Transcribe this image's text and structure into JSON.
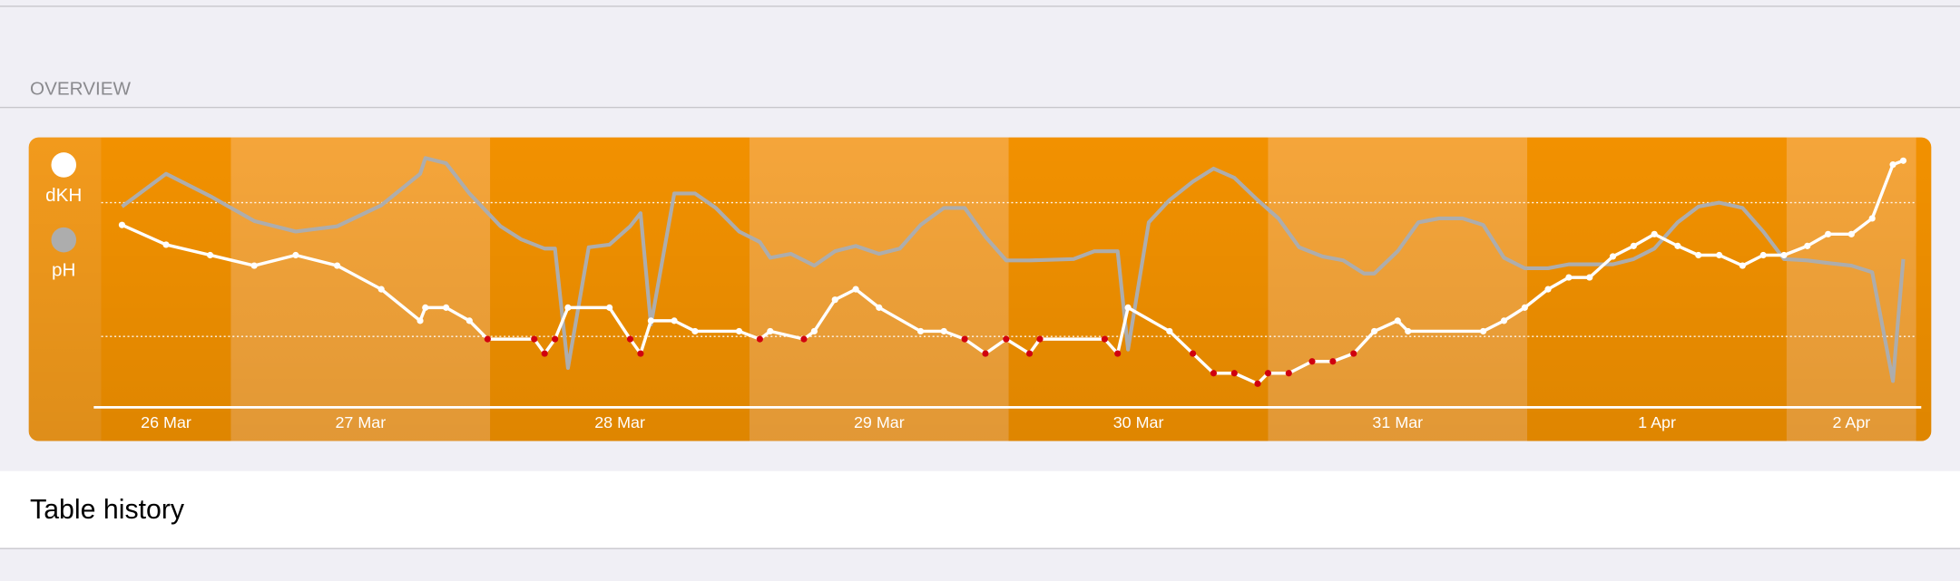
{
  "header": {
    "section_title": "OVERVIEW"
  },
  "chart_data": {
    "type": "line",
    "xlim": [
      0.5,
      7.5
    ],
    "xticks": [
      {
        "value": 0.75,
        "label": "26 Mar"
      },
      {
        "value": 1.5,
        "label": "27 Mar"
      },
      {
        "value": 2.5,
        "label": "28 Mar"
      },
      {
        "value": 3.5,
        "label": "29 Mar"
      },
      {
        "value": 4.5,
        "label": "30 Mar"
      },
      {
        "value": 5.5,
        "label": "31 Mar"
      },
      {
        "value": 6.5,
        "label": "1 Apr"
      },
      {
        "value": 7.25,
        "label": "2 Apr"
      }
    ],
    "ylim": [
      0,
      100
    ],
    "reference_lines": [
      78,
      27
    ],
    "point_color": "#ffffff",
    "low_point_color": "#d0000f",
    "series": [
      {
        "name": "dKH",
        "color": "#ffffff",
        "x": [
          0.58,
          0.75,
          0.92,
          1.09,
          1.25,
          1.41,
          1.58,
          1.73,
          1.75,
          1.83,
          1.92,
          1.99,
          2.17,
          2.21,
          2.25,
          2.3,
          2.46,
          2.54,
          2.58,
          2.62,
          2.71,
          2.79,
          2.96,
          3.04,
          3.08,
          3.21,
          3.25,
          3.33,
          3.41,
          3.5,
          3.66,
          3.75,
          3.83,
          3.91,
          3.99,
          4.08,
          4.12,
          4.37,
          4.42,
          4.46,
          4.62,
          4.71,
          4.79,
          4.87,
          4.96,
          5.0,
          5.08,
          5.17,
          5.25,
          5.33,
          5.41,
          5.5,
          5.54,
          5.83,
          5.91,
          5.99,
          6.08,
          6.16,
          6.24,
          6.33,
          6.41,
          6.49,
          6.58,
          6.66,
          6.74,
          6.83,
          6.91,
          6.99,
          7.08,
          7.16,
          7.25,
          7.33,
          7.41,
          7.45
        ],
        "values": [
          69.5,
          62,
          58,
          54,
          58,
          54,
          45,
          33,
          38,
          38,
          33,
          26,
          26,
          20.5,
          26,
          38,
          38,
          26,
          20.5,
          33,
          33,
          29,
          29,
          26,
          29,
          26,
          29,
          41,
          45,
          38,
          29,
          29,
          26,
          20.5,
          26,
          20.5,
          26,
          26,
          20.5,
          38,
          29,
          20.5,
          13,
          13,
          9,
          13,
          13,
          17.5,
          17.5,
          20.5,
          29,
          33,
          29,
          29,
          33,
          38,
          45,
          49.5,
          49.5,
          57.5,
          61.5,
          66,
          61.5,
          58,
          58,
          54,
          58,
          58,
          61.5,
          66,
          66,
          72,
          92.5,
          94
        ]
      },
      {
        "name": "pH",
        "color": "#adadad",
        "x": [
          0.58,
          0.75,
          0.92,
          1.09,
          1.25,
          1.41,
          1.58,
          1.73,
          1.75,
          1.83,
          1.92,
          2.04,
          2.12,
          2.21,
          2.25,
          2.3,
          2.38,
          2.46,
          2.54,
          2.58,
          2.62,
          2.71,
          2.79,
          2.87,
          2.96,
          3.04,
          3.08,
          3.16,
          3.25,
          3.33,
          3.41,
          3.5,
          3.58,
          3.66,
          3.75,
          3.83,
          3.91,
          3.99,
          4.08,
          4.25,
          4.33,
          4.42,
          4.46,
          4.54,
          4.62,
          4.71,
          4.79,
          4.87,
          4.96,
          5.04,
          5.12,
          5.21,
          5.29,
          5.37,
          5.41,
          5.5,
          5.58,
          5.66,
          5.75,
          5.83,
          5.91,
          5.99,
          6.08,
          6.16,
          6.24,
          6.33,
          6.41,
          6.49,
          6.58,
          6.66,
          6.74,
          6.83,
          6.91,
          6.99,
          7.08,
          7.16,
          7.25,
          7.33,
          7.41,
          7.45
        ],
        "values": [
          76.5,
          89,
          80.5,
          71,
          67,
          69,
          77,
          89,
          95,
          93,
          81.5,
          69,
          64,
          60.5,
          60.5,
          15,
          61,
          62,
          69,
          74,
          31.5,
          81.5,
          81.5,
          76,
          67,
          63,
          57,
          58.5,
          54,
          59.5,
          61.5,
          58.5,
          60.5,
          69.5,
          76,
          76,
          65,
          56,
          56,
          56.5,
          59.5,
          59.5,
          22,
          70.5,
          79,
          86,
          91,
          87.5,
          79,
          72,
          61,
          57.5,
          56,
          51,
          51,
          59.5,
          70.5,
          72,
          72,
          69.5,
          57,
          53,
          53,
          54.5,
          54.5,
          54.5,
          56.5,
          60.5,
          70.5,
          76.5,
          78,
          76,
          67,
          56.5,
          56,
          55,
          54,
          51.5,
          10,
          56.5
        ]
      }
    ]
  },
  "list": {
    "item": "Table history"
  }
}
